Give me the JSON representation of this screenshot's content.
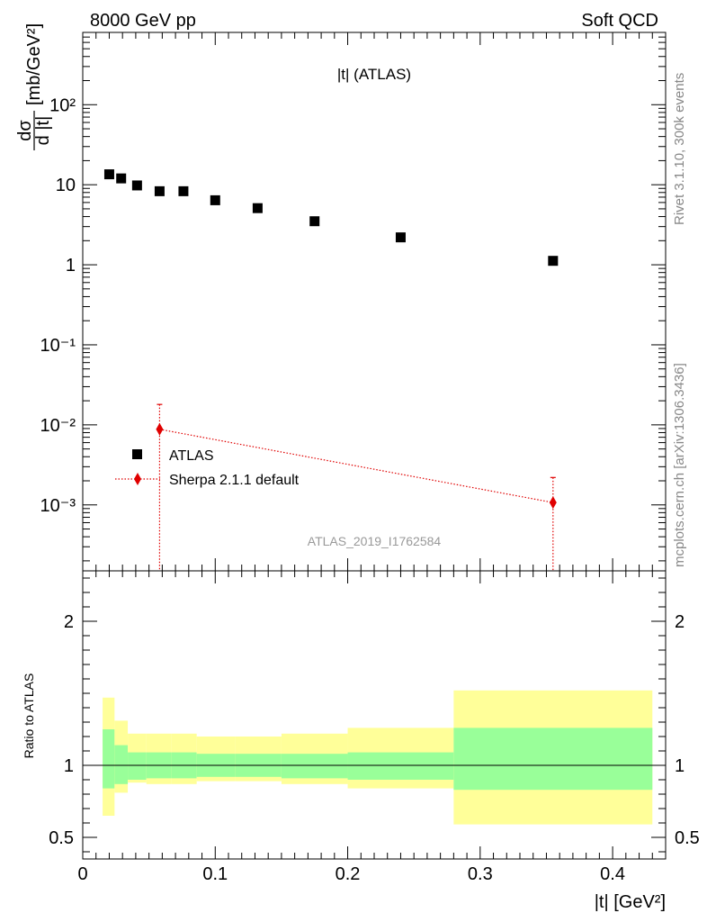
{
  "header": {
    "left": "8000 GeV pp",
    "right": "Soft QCD"
  },
  "side_labels": {
    "rivet": "Rivet 3.1.10,  300k events",
    "mcplots": "mcplots.cern.ch [arXiv:1306.3436]"
  },
  "chart_data": [
    {
      "type": "scatter",
      "title": "|t| (ATLAS)",
      "watermark": "ATLAS_2019_I1762584",
      "ylabel_num": "dσ",
      "ylabel_den": "d |t|",
      "ylabel_unit": "[mb/GeV²]",
      "yscale": "log",
      "ylim": [
        0.00015,
        800
      ],
      "xlim": [
        0,
        0.44
      ],
      "y_ticks": [
        {
          "value": 100,
          "label": "10²"
        },
        {
          "value": 10,
          "label": "10"
        },
        {
          "value": 1,
          "label": "1"
        },
        {
          "value": 0.1,
          "label": "10⁻¹"
        },
        {
          "value": 0.01,
          "label": "10⁻²"
        },
        {
          "value": 0.001,
          "label": "10⁻³"
        }
      ],
      "legend_position": "middle-left",
      "series": [
        {
          "name": "ATLAS",
          "color": "#000000",
          "marker": "square",
          "x": [
            0.02,
            0.029,
            0.041,
            0.058,
            0.076,
            0.1,
            0.132,
            0.175,
            0.24,
            0.355
          ],
          "y": [
            13.5,
            12.0,
            9.8,
            8.3,
            8.3,
            6.4,
            5.1,
            3.5,
            2.2,
            1.12
          ]
        },
        {
          "name": "Sherpa 2.1.1 default",
          "color": "#e00000",
          "marker": "diamond",
          "line": "dotted",
          "x": [
            0.058,
            0.355
          ],
          "y": [
            0.0088,
            0.00107
          ],
          "y_err_up": [
            0.018,
            0.0022
          ]
        }
      ]
    },
    {
      "type": "band",
      "ylabel": "Ratio to ATLAS",
      "xlabel": "|t| [GeV²]",
      "ylim": [
        0.35,
        2.35
      ],
      "xlim": [
        0,
        0.44
      ],
      "reference_line": 1,
      "y_ticks": [
        {
          "value": 0.5,
          "label": "0.5"
        },
        {
          "value": 1,
          "label": "1"
        },
        {
          "value": 2,
          "label": "2"
        }
      ],
      "x_ticks": [
        {
          "value": 0,
          "label": "0"
        },
        {
          "value": 0.1,
          "label": "0.1"
        },
        {
          "value": 0.2,
          "label": "0.2"
        },
        {
          "value": 0.3,
          "label": "0.3"
        },
        {
          "value": 0.4,
          "label": "0.4"
        }
      ],
      "bins": [
        {
          "x0": 0.015,
          "x1": 0.024,
          "inner": [
            0.84,
            1.25
          ],
          "outer": [
            0.65,
            1.47
          ]
        },
        {
          "x0": 0.024,
          "x1": 0.034,
          "inner": [
            0.87,
            1.14
          ],
          "outer": [
            0.81,
            1.31
          ]
        },
        {
          "x0": 0.034,
          "x1": 0.048,
          "inner": [
            0.9,
            1.09
          ],
          "outer": [
            0.88,
            1.22
          ]
        },
        {
          "x0": 0.048,
          "x1": 0.067,
          "inner": [
            0.91,
            1.09
          ],
          "outer": [
            0.87,
            1.22
          ]
        },
        {
          "x0": 0.067,
          "x1": 0.086,
          "inner": [
            0.91,
            1.09
          ],
          "outer": [
            0.87,
            1.22
          ]
        },
        {
          "x0": 0.086,
          "x1": 0.115,
          "inner": [
            0.92,
            1.08
          ],
          "outer": [
            0.89,
            1.2
          ]
        },
        {
          "x0": 0.115,
          "x1": 0.15,
          "inner": [
            0.92,
            1.08
          ],
          "outer": [
            0.89,
            1.2
          ]
        },
        {
          "x0": 0.15,
          "x1": 0.2,
          "inner": [
            0.91,
            1.08
          ],
          "outer": [
            0.87,
            1.22
          ]
        },
        {
          "x0": 0.2,
          "x1": 0.28,
          "inner": [
            0.9,
            1.09
          ],
          "outer": [
            0.84,
            1.26
          ]
        },
        {
          "x0": 0.28,
          "x1": 0.43,
          "inner": [
            0.83,
            1.26
          ],
          "outer": [
            0.59,
            1.52
          ]
        }
      ]
    }
  ]
}
